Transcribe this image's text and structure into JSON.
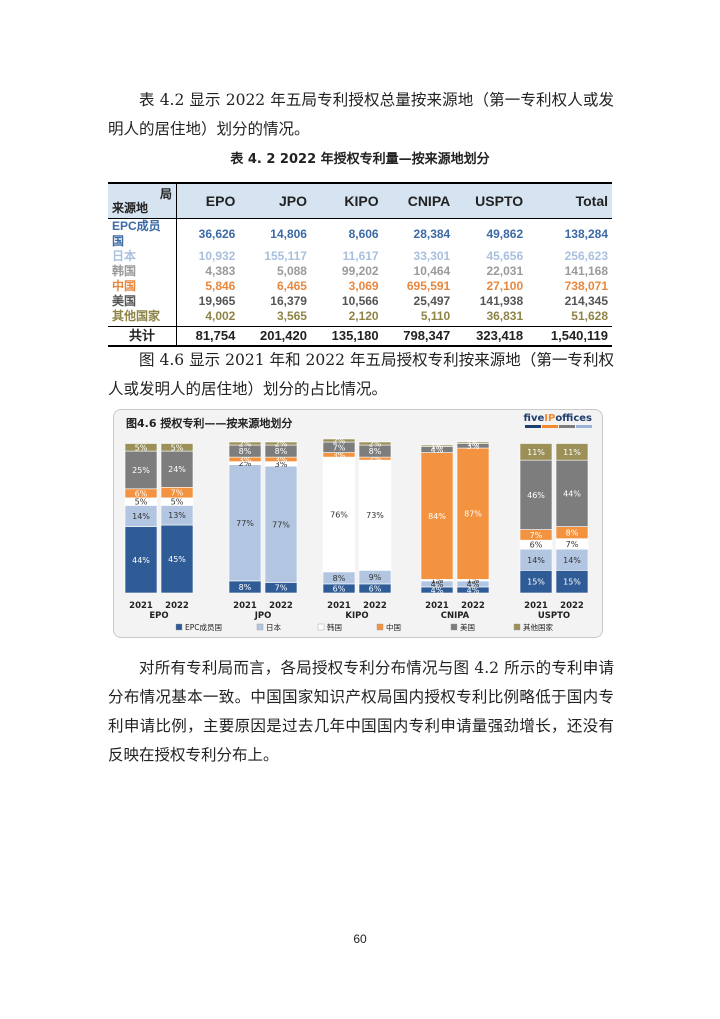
{
  "intro_paragraph": "表 4.2 显示 2022 年五局专利授权总量按来源地（第一专利权人或发明人的居住地）划分的情况。",
  "table": {
    "caption": "表 4. 2  2022 年授权专利量—按来源地划分",
    "corner_top": "局",
    "corner_bottom": "来源地",
    "headers": [
      "EPO",
      "JPO",
      "KIPO",
      "CNIPA",
      "USPTO",
      "Total"
    ],
    "rows": [
      {
        "label": "EPC成员国",
        "values": [
          "36,626",
          "14,806",
          "8,606",
          "28,384",
          "49,862",
          "138,284"
        ]
      },
      {
        "label": "日本",
        "values": [
          "10,932",
          "155,117",
          "11,617",
          "33,301",
          "45,656",
          "256,623"
        ]
      },
      {
        "label": "韩国",
        "values": [
          "4,383",
          "5,088",
          "99,202",
          "10,464",
          "22,031",
          "141,168"
        ]
      },
      {
        "label": "中国",
        "values": [
          "5,846",
          "6,465",
          "3,069",
          "695,591",
          "27,100",
          "738,071"
        ]
      },
      {
        "label": "美国",
        "values": [
          "19,965",
          "16,379",
          "10,566",
          "25,497",
          "141,938",
          "214,345"
        ]
      },
      {
        "label": "其他国家",
        "values": [
          "4,002",
          "3,565",
          "2,120",
          "5,110",
          "36,831",
          "51,628"
        ]
      }
    ],
    "total": {
      "label": "共计",
      "values": [
        "81,754",
        "201,420",
        "135,180",
        "798,347",
        "323,418",
        "1,540,119"
      ]
    }
  },
  "figure_paragraph": "图 4.6 显示 2021 年和 2022 年五局授权专利按来源地（第一专利权人或发明人的居住地）划分的占比情况。",
  "figure": {
    "title": "图4.6 授权专利——按来源地划分",
    "logo": {
      "pre": "five",
      "mid": "IP",
      "post": "offices"
    },
    "colors": {
      "EPC": "#2f5b96",
      "JP": "#b3c6e1",
      "KR": "#ffffff",
      "CN": "#f4933f",
      "US": "#7d7d7d",
      "OT": "#9a9058"
    }
  },
  "chart_data": {
    "type": "bar",
    "stacked": true,
    "normalized": true,
    "title": "图4.6 授权专利——按来源地划分",
    "groups": [
      "EPO",
      "JPO",
      "KIPO",
      "CNIPA",
      "USPTO"
    ],
    "years": [
      "2021",
      "2022"
    ],
    "series": [
      {
        "name": "EPC成员国",
        "key": "EPC",
        "values": [
          [
            44,
            45
          ],
          [
            8,
            7
          ],
          [
            6,
            6
          ],
          [
            4,
            4
          ],
          [
            15,
            15
          ]
        ]
      },
      {
        "name": "日本",
        "key": "JP",
        "values": [
          [
            14,
            13
          ],
          [
            77,
            77
          ],
          [
            8,
            9
          ],
          [
            4,
            4
          ],
          [
            14,
            14
          ]
        ]
      },
      {
        "name": "韩国",
        "key": "KR",
        "values": [
          [
            5,
            5
          ],
          [
            2,
            3
          ],
          [
            76,
            73
          ],
          [
            1,
            1
          ],
          [
            6,
            7
          ]
        ]
      },
      {
        "name": "中国",
        "key": "CN",
        "values": [
          [
            6,
            7
          ],
          [
            3,
            3
          ],
          [
            3,
            2
          ],
          [
            84,
            87
          ],
          [
            7,
            8
          ]
        ]
      },
      {
        "name": "美国",
        "key": "US",
        "values": [
          [
            25,
            24
          ],
          [
            8,
            8
          ],
          [
            7,
            8
          ],
          [
            4,
            3
          ],
          [
            46,
            44
          ]
        ]
      },
      {
        "name": "其他国家",
        "key": "OT",
        "values": [
          [
            5,
            5
          ],
          [
            2,
            2
          ],
          [
            2,
            2
          ],
          [
            1,
            1
          ],
          [
            11,
            11
          ]
        ]
      }
    ],
    "ylim": [
      0,
      100
    ],
    "legend_position": "bottom"
  },
  "closing_paragraph": "对所有专利局而言，各局授权专利分布情况与图 4.2 所示的专利申请分布情况基本一致。中国国家知识产权局国内授权专利比例略低于国内专利申请比例，主要原因是过去几年中国国内专利申请量强劲增长，还没有反映在授权专利分布上。",
  "page_number": "60"
}
